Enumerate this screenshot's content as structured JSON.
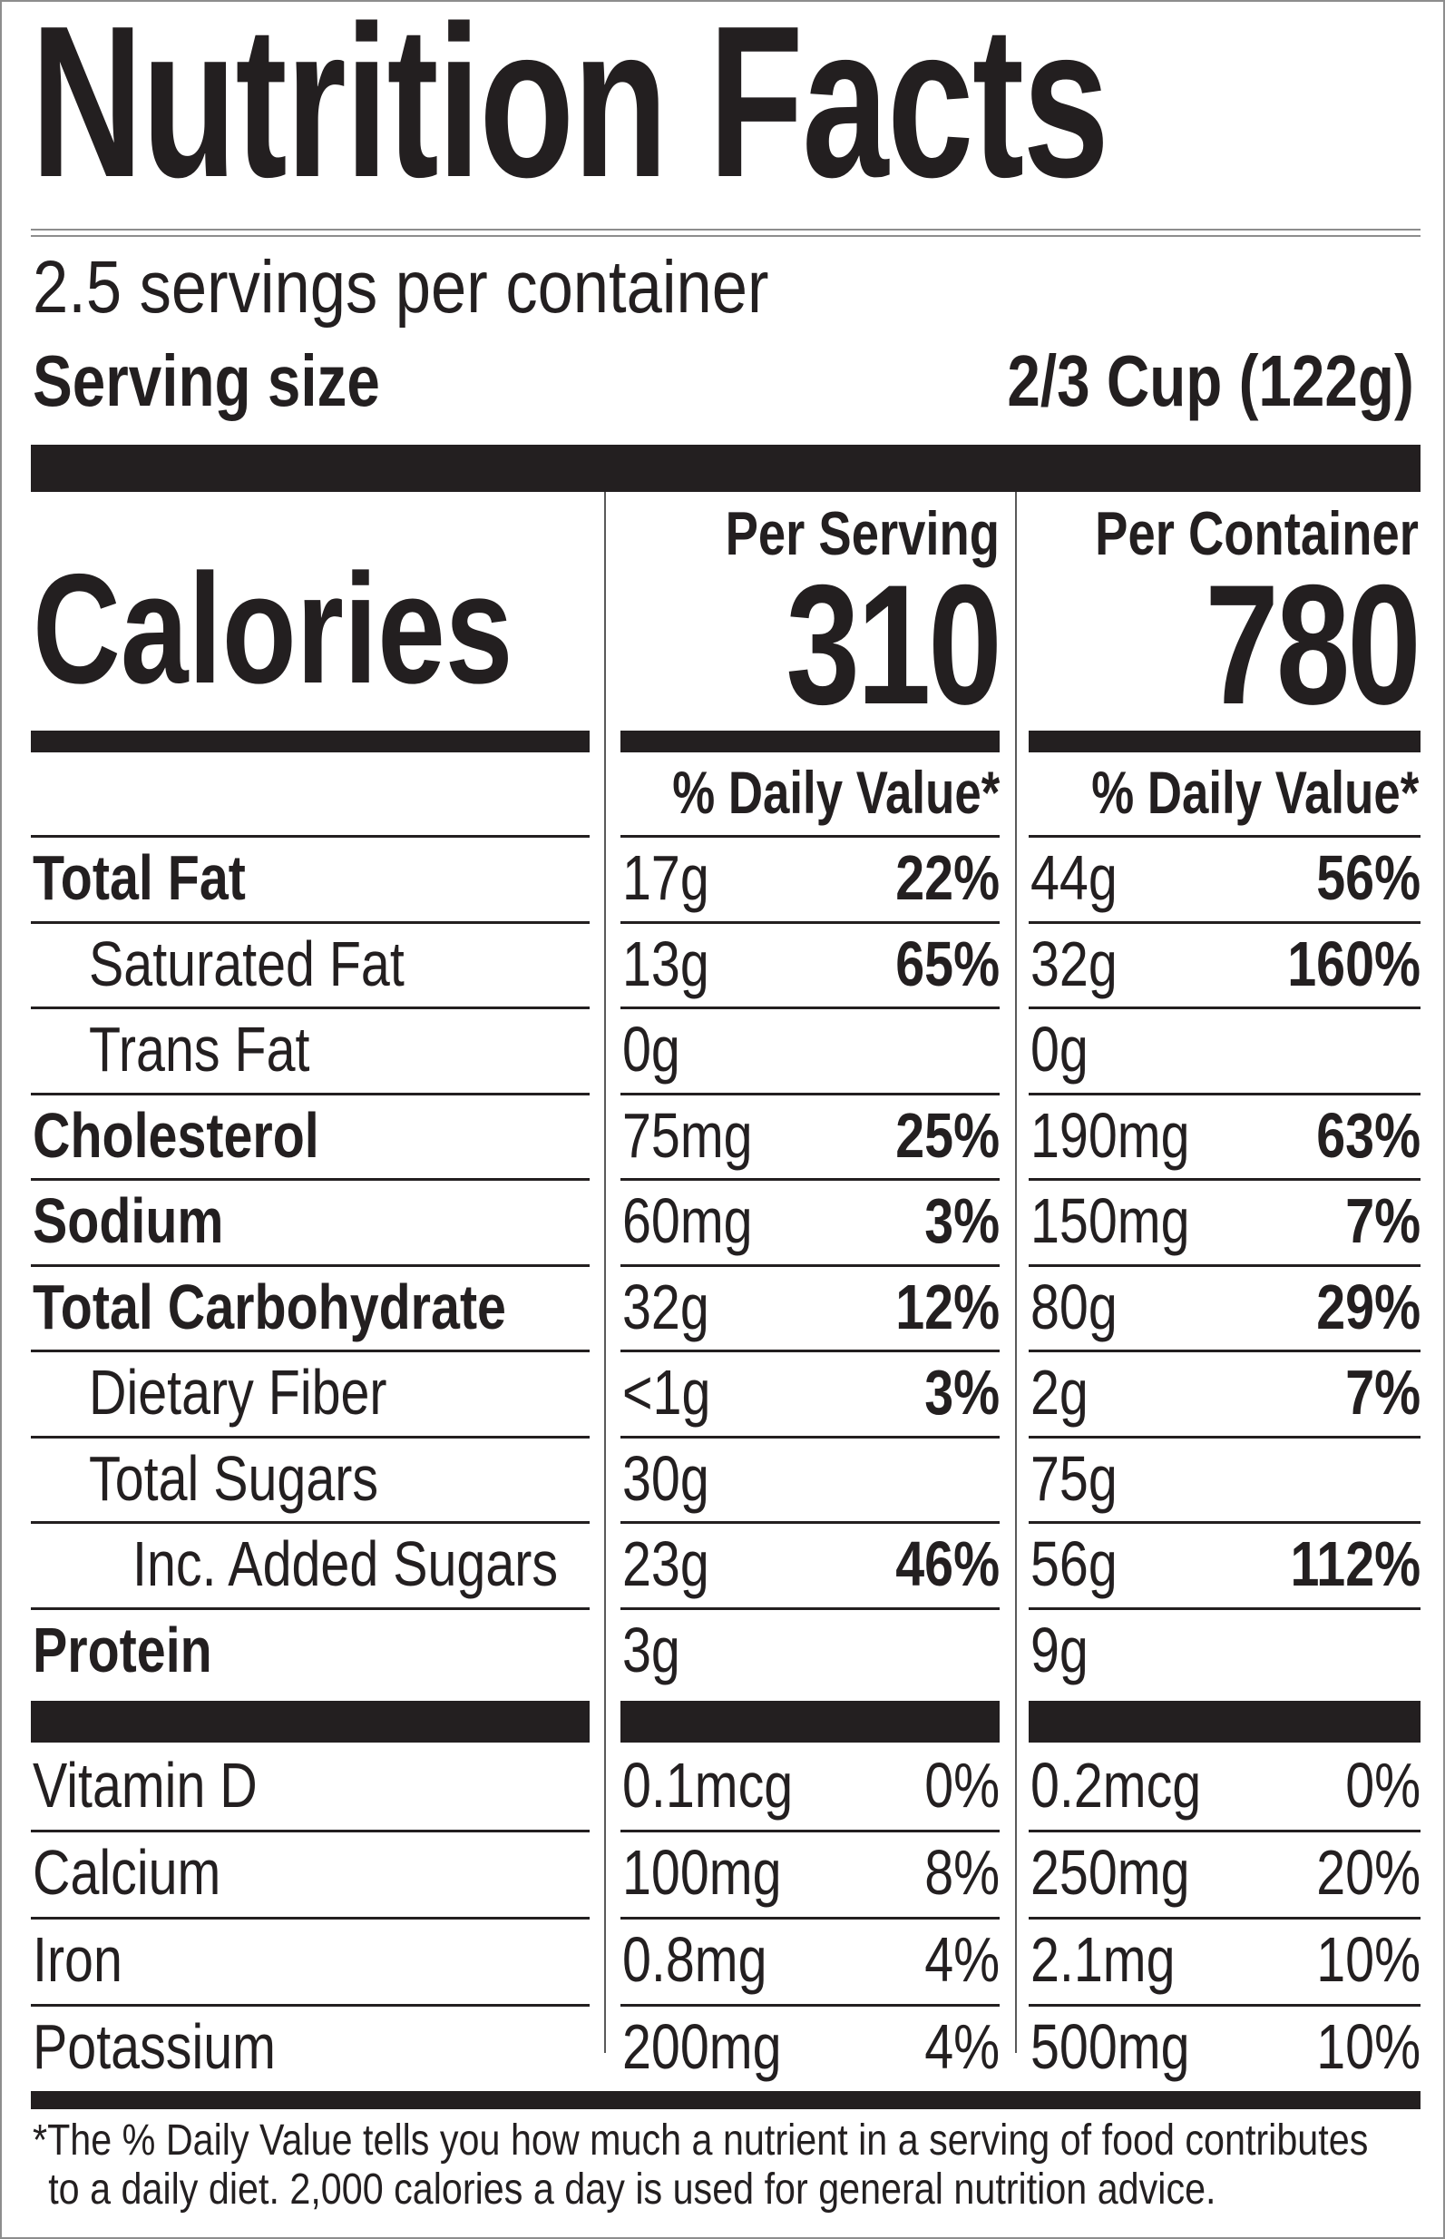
{
  "title": "Nutrition Facts",
  "servings_per_container": "2.5 servings per container",
  "serving_size": {
    "label": "Serving size",
    "value": "2/3 Cup (122g)"
  },
  "calories": {
    "label": "Calories",
    "per_serving_header": "Per Serving",
    "per_container_header": "Per Container",
    "per_serving": "310",
    "per_container": "780"
  },
  "dv_header": "% Daily Value*",
  "nutrients": [
    {
      "name": "Total Fat",
      "bold": true,
      "indent": 0,
      "serv_amt": "17g",
      "serv_dv": "22%",
      "cont_amt": "44g",
      "cont_dv": "56%"
    },
    {
      "name": "Saturated Fat",
      "bold": false,
      "indent": 1,
      "serv_amt": "13g",
      "serv_dv": "65%",
      "cont_amt": "32g",
      "cont_dv": "160%"
    },
    {
      "name": "Trans Fat",
      "bold": false,
      "indent": 1,
      "serv_amt": "0g",
      "serv_dv": "",
      "cont_amt": "0g",
      "cont_dv": ""
    },
    {
      "name": "Cholesterol",
      "bold": true,
      "indent": 0,
      "serv_amt": "75mg",
      "serv_dv": "25%",
      "cont_amt": "190mg",
      "cont_dv": "63%"
    },
    {
      "name": "Sodium",
      "bold": true,
      "indent": 0,
      "serv_amt": "60mg",
      "serv_dv": "3%",
      "cont_amt": "150mg",
      "cont_dv": "7%"
    },
    {
      "name": "Total Carbohydrate",
      "bold": true,
      "indent": 0,
      "serv_amt": "32g",
      "serv_dv": "12%",
      "cont_amt": "80g",
      "cont_dv": "29%"
    },
    {
      "name": "Dietary Fiber",
      "bold": false,
      "indent": 1,
      "serv_amt": "<1g",
      "serv_dv": "3%",
      "cont_amt": "2g",
      "cont_dv": "7%"
    },
    {
      "name": "Total Sugars",
      "bold": false,
      "indent": 1,
      "serv_amt": "30g",
      "serv_dv": "",
      "cont_amt": "75g",
      "cont_dv": ""
    },
    {
      "name": "Inc. Added Sugars",
      "bold": false,
      "indent": 2,
      "serv_amt": "23g",
      "serv_dv": "46%",
      "cont_amt": "56g",
      "cont_dv": "112%"
    },
    {
      "name": "Protein",
      "bold": true,
      "indent": 0,
      "serv_amt": "3g",
      "serv_dv": "",
      "cont_amt": "9g",
      "cont_dv": ""
    }
  ],
  "vitamins": [
    {
      "name": "Vitamin D",
      "serv_amt": "0.1mcg",
      "serv_dv": "0%",
      "cont_amt": "0.2mcg",
      "cont_dv": "0%"
    },
    {
      "name": "Calcium",
      "serv_amt": "100mg",
      "serv_dv": "8%",
      "cont_amt": "250mg",
      "cont_dv": "20%"
    },
    {
      "name": "Iron",
      "serv_amt": "0.8mg",
      "serv_dv": "4%",
      "cont_amt": "2.1mg",
      "cont_dv": "10%"
    },
    {
      "name": "Potassium",
      "serv_amt": "200mg",
      "serv_dv": "4%",
      "cont_amt": "500mg",
      "cont_dv": "10%"
    }
  ],
  "footnote_line1": "*The % Daily Value tells you how much a nutrient in a serving of food contributes",
  "footnote_line2": "to a daily diet. 2,000 calories a day is used for general nutrition advice."
}
